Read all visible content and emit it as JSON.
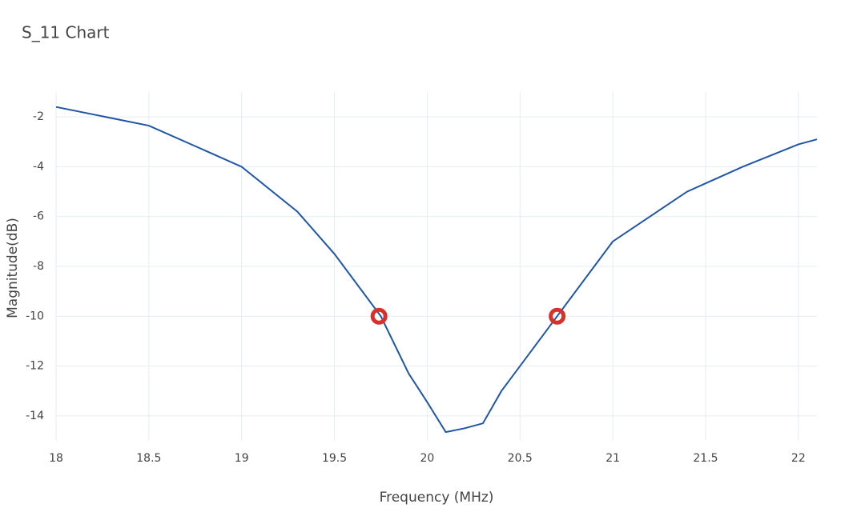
{
  "chart_data": {
    "type": "line",
    "title": "S_11 Chart",
    "x_label": "Frequency (MHz)",
    "y_label": "Magnitude(dB)",
    "x": [
      18,
      18.5,
      19,
      19.3,
      19.5,
      19.75,
      19.9,
      20.0,
      20.1,
      20.2,
      20.3,
      20.4,
      20.7,
      21,
      21.4,
      21.7,
      22,
      22.1
    ],
    "series": [
      {
        "color": "#1f56a6",
        "values": [
          -1.6,
          -2.35,
          -4.0,
          -5.8,
          -7.5,
          -10,
          -12.3,
          -13.45,
          -14.65,
          -14.5,
          -14.3,
          -13.0,
          -10,
          -7.0,
          -5.0,
          -4.0,
          -3.1,
          -2.9
        ]
      }
    ],
    "markers": {
      "color": "#d9302c",
      "x": [
        19.74,
        20.7
      ],
      "values": [
        -10,
        -10
      ]
    },
    "xlim": [
      18,
      22.1
    ],
    "ylim": [
      -15,
      -1
    ],
    "xticks": [
      18,
      18.5,
      19,
      19.5,
      20,
      20.5,
      21,
      21.5,
      22
    ],
    "yticks": [
      -14,
      -12,
      -10,
      -8,
      -6,
      -4,
      -2
    ],
    "grid": true
  }
}
